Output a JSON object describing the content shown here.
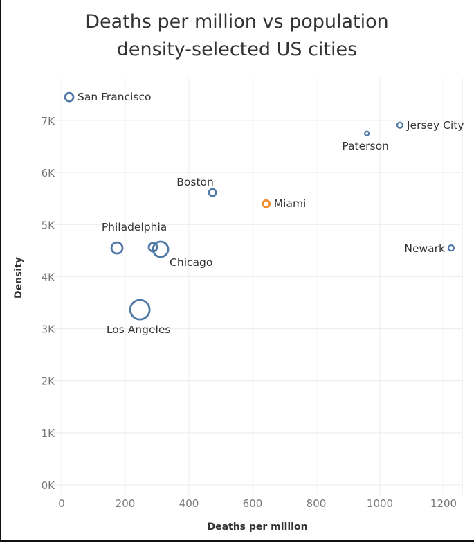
{
  "chart_data": {
    "type": "scatter",
    "title": "Deaths per million vs population density-selected US cities",
    "title_lines": [
      "Deaths per million vs population",
      "density-selected US cities"
    ],
    "xlabel": "Deaths per million",
    "ylabel": "Density",
    "xlim": [
      -30,
      1290
    ],
    "ylim": [
      -200,
      7900
    ],
    "x_ticks": [
      0,
      200,
      400,
      600,
      800,
      1000,
      1200
    ],
    "x_tick_labels": [
      "0",
      "200",
      "400",
      "600",
      "800",
      "1000",
      "1200"
    ],
    "y_ticks": [
      0,
      1000,
      2000,
      3000,
      4000,
      5000,
      6000,
      7000
    ],
    "y_tick_labels": [
      "0K",
      "1K",
      "2K",
      "3K",
      "4K",
      "5K",
      "6K",
      "7K"
    ],
    "grid": true,
    "legend": "none",
    "marker": "open-circle",
    "colors": {
      "default": "#4e79a7",
      "highlight": "#f28e2b"
    },
    "points": [
      {
        "label": "San Francisco",
        "x": 24,
        "y": 7450,
        "size": 6,
        "color": "default",
        "label_pos": "right"
      },
      {
        "label": "Jersey City",
        "x": 1063,
        "y": 6910,
        "size": 4,
        "color": "default",
        "label_pos": "right"
      },
      {
        "label": "Paterson",
        "x": 959,
        "y": 6750,
        "size": 3,
        "color": "default",
        "label_pos": "below"
      },
      {
        "label": "Boston",
        "x": 474,
        "y": 5615,
        "size": 5,
        "color": "default",
        "label_pos": "above-left"
      },
      {
        "label": "Miami",
        "x": 643,
        "y": 5400,
        "size": 5,
        "color": "highlight",
        "label_pos": "right"
      },
      {
        "label": "Newark",
        "x": 1224,
        "y": 4550,
        "size": 4,
        "color": "default",
        "label_pos": "left"
      },
      {
        "label": "Philadelphia",
        "x": 174,
        "y": 4550,
        "size": 8,
        "color": "default",
        "label_pos": "above"
      },
      {
        "label": "",
        "x": 287,
        "y": 4565,
        "size": 6,
        "color": "default",
        "label_pos": "none"
      },
      {
        "label": "Chicago",
        "x": 311,
        "y": 4525,
        "size": 11,
        "color": "default",
        "label_pos": "below-right"
      },
      {
        "label": "Los Angeles",
        "x": 246,
        "y": 3365,
        "size": 14,
        "color": "default",
        "label_pos": "below"
      }
    ]
  }
}
